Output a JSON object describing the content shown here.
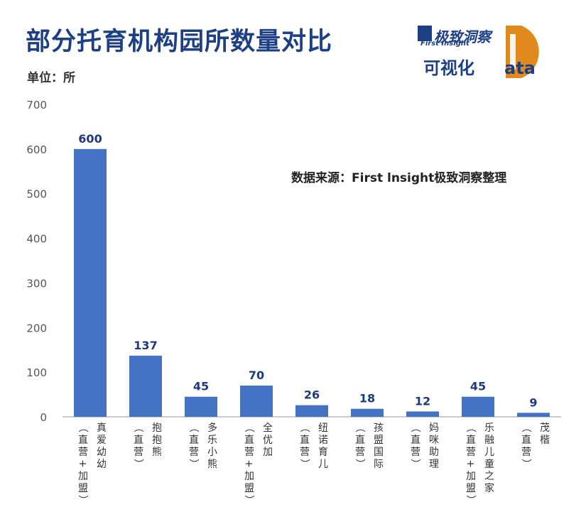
{
  "header": {
    "title": "部分托育机构园所数量对比",
    "unit_label": "单位：所",
    "source": "数据来源：First lnsight极致洞察整理"
  },
  "logo": {
    "cn_text": "极致洞察",
    "en_text": "First Insight",
    "vis_text": "可视化",
    "data_text": "ata",
    "accent_color": "#e08a1e",
    "brand_color": "#1d3f86"
  },
  "colors": {
    "bar": "#4472c4",
    "value_label": "#1f3a7a",
    "axis": "#555555"
  },
  "chart_data": {
    "type": "bar",
    "categories": [
      "真爱幼幼（直营+加盟）",
      "抱抱熊（直营）",
      "多乐小熊（直营）",
      "全优加（直营+加盟）",
      "纽诺育儿（直营）",
      "孩盟国际（直营）",
      "妈咪助理（直营）",
      "乐融儿童之家（直营+加盟）",
      "茂楷（直营）"
    ],
    "names": [
      "真爱幼幼",
      "抱抱熊",
      "多乐小熊",
      "全优加",
      "纽诺育儿",
      "孩盟国际",
      "妈咪助理",
      "乐融儿童之家",
      "茂楷"
    ],
    "types": [
      "（直营+加盟）",
      "（直营）",
      "（直营）",
      "（直营+加盟）",
      "（直营）",
      "（直营）",
      "（直营）",
      "（直营+加盟）",
      "（直营）"
    ],
    "values": [
      600,
      137,
      45,
      70,
      26,
      18,
      12,
      45,
      9
    ],
    "ylim": [
      0,
      700
    ],
    "yticks": [
      0,
      100,
      200,
      300,
      400,
      500,
      600,
      700
    ],
    "title": "部分托育机构园所数量对比",
    "ylabel": "单位：所",
    "grid": false
  }
}
